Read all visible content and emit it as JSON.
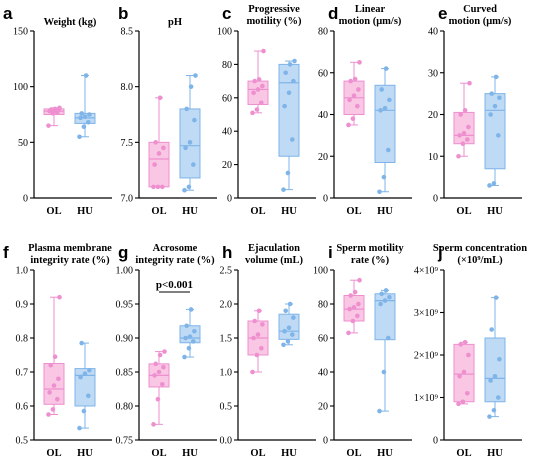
{
  "colors": {
    "OL_fill": "#f9c6e4",
    "OL_stroke": "#ee8fcf",
    "HU_fill": "#bfdaf4",
    "HU_stroke": "#7fb4e8"
  },
  "chart_data": [
    {
      "type": "box",
      "letter": "a",
      "title": [
        "Weight (kg)"
      ],
      "categories": [
        "OL",
        "HU"
      ],
      "ylim": [
        0,
        150
      ],
      "ticks": [
        0,
        50,
        100,
        150
      ],
      "tick_labels": [
        "0",
        "50",
        "100",
        "150"
      ],
      "series": [
        {
          "name": "OL",
          "box": [
            75,
            78,
            80
          ],
          "whisker": [
            65,
            81
          ],
          "points": [
            65,
            76,
            77,
            78,
            78,
            79,
            79,
            80,
            81
          ]
        },
        {
          "name": "HU",
          "box": [
            67,
            72,
            76
          ],
          "whisker": [
            55,
            110
          ],
          "points": [
            55,
            64,
            68,
            72,
            73,
            75,
            76,
            110
          ]
        }
      ]
    },
    {
      "type": "box",
      "letter": "b",
      "title": [
        "pH"
      ],
      "categories": [
        "OL",
        "HU"
      ],
      "ylim": [
        7.0,
        8.5
      ],
      "ticks": [
        7.0,
        7.5,
        8.0,
        8.5
      ],
      "tick_labels": [
        "7.0",
        "7.5",
        "8.0",
        "8.5"
      ],
      "series": [
        {
          "name": "OL",
          "box": [
            7.1,
            7.35,
            7.5
          ],
          "whisker": [
            7.1,
            7.9
          ],
          "points": [
            7.1,
            7.1,
            7.1,
            7.3,
            7.4,
            7.45,
            7.5,
            7.9
          ]
        },
        {
          "name": "HU",
          "box": [
            7.18,
            7.47,
            7.8
          ],
          "whisker": [
            7.07,
            8.1
          ],
          "points": [
            7.07,
            7.1,
            7.3,
            7.45,
            7.5,
            7.7,
            7.8,
            8.0,
            8.1
          ]
        }
      ]
    },
    {
      "type": "box",
      "letter": "c",
      "title": [
        "Progressive",
        "motility (%)"
      ],
      "categories": [
        "OL",
        "HU"
      ],
      "ylim": [
        0,
        100
      ],
      "ticks": [
        0,
        20,
        40,
        60,
        80,
        100
      ],
      "tick_labels": [
        "0",
        "20",
        "40",
        "60",
        "80",
        "100"
      ],
      "series": [
        {
          "name": "OL",
          "box": [
            56,
            65,
            70
          ],
          "whisker": [
            51,
            88
          ],
          "points": [
            51,
            53,
            57,
            63,
            65,
            67,
            70,
            71,
            88
          ]
        },
        {
          "name": "HU",
          "box": [
            25,
            69,
            80
          ],
          "whisker": [
            5,
            82
          ],
          "points": [
            5,
            15,
            35,
            55,
            63,
            70,
            75,
            80,
            82
          ]
        }
      ]
    },
    {
      "type": "box",
      "letter": "d",
      "title": [
        "Linear",
        "motion (μm/s)"
      ],
      "categories": [
        "OL",
        "HU"
      ],
      "ylim": [
        0,
        80
      ],
      "ticks": [
        0,
        20,
        40,
        60,
        80
      ],
      "tick_labels": [
        "0",
        "20",
        "40",
        "60",
        "80"
      ],
      "series": [
        {
          "name": "OL",
          "box": [
            40,
            48,
            56
          ],
          "whisker": [
            35,
            65
          ],
          "points": [
            35,
            38,
            44,
            47,
            49,
            52,
            56,
            57,
            65
          ]
        },
        {
          "name": "HU",
          "box": [
            17,
            42,
            54
          ],
          "whisker": [
            3,
            62
          ],
          "points": [
            3,
            10,
            23,
            42,
            43,
            47,
            52,
            62
          ]
        }
      ]
    },
    {
      "type": "box",
      "letter": "e",
      "title": [
        "Curved",
        "motion (μm/s)"
      ],
      "categories": [
        "OL",
        "HU"
      ],
      "ylim": [
        0,
        40
      ],
      "ticks": [
        0,
        10,
        20,
        30,
        40
      ],
      "tick_labels": [
        "0",
        "10",
        "20",
        "30",
        "40"
      ],
      "series": [
        {
          "name": "OL",
          "box": [
            13,
            15,
            20.5
          ],
          "whisker": [
            10,
            27.5
          ],
          "points": [
            10,
            13,
            14,
            15,
            15.5,
            17,
            20,
            21,
            27.5
          ]
        },
        {
          "name": "HU",
          "box": [
            7,
            21,
            25
          ],
          "whisker": [
            3,
            29
          ],
          "points": [
            3,
            3.5,
            15,
            20,
            22,
            24,
            25,
            29
          ]
        }
      ]
    },
    {
      "type": "box",
      "letter": "f",
      "title": [
        "Plasma membrane",
        "integrity rate (%)"
      ],
      "categories": [
        "OL",
        "HU"
      ],
      "ylim": [
        0.5,
        1.0
      ],
      "ticks": [
        0.5,
        0.6,
        0.7,
        0.8,
        0.9,
        1.0
      ],
      "tick_labels": [
        "0.5",
        "0.6",
        "0.7",
        "0.8",
        "0.9",
        "1.0"
      ],
      "series": [
        {
          "name": "OL",
          "box": [
            0.605,
            0.65,
            0.725
          ],
          "whisker": [
            0.575,
            0.92
          ],
          "points": [
            0.575,
            0.59,
            0.62,
            0.64,
            0.66,
            0.68,
            0.72,
            0.745,
            0.92
          ]
        },
        {
          "name": "HU",
          "box": [
            0.6,
            0.69,
            0.71
          ],
          "whisker": [
            0.535,
            0.785
          ],
          "points": [
            0.535,
            0.585,
            0.63,
            0.685,
            0.695,
            0.705,
            0.785
          ]
        }
      ]
    },
    {
      "type": "box",
      "letter": "g",
      "title": [
        "Acrosome",
        "integrity rate (%)"
      ],
      "categories": [
        "OL",
        "HU"
      ],
      "ylim": [
        0.75,
        1.0
      ],
      "ticks": [
        0.75,
        0.8,
        0.85,
        0.9,
        0.95,
        1.0
      ],
      "tick_labels": [
        "0.75",
        "0.80",
        "0.85",
        "0.90",
        "0.95",
        "1.00"
      ],
      "annotation": "p<0.001",
      "series": [
        {
          "name": "OL",
          "box": [
            0.828,
            0.845,
            0.862
          ],
          "whisker": [
            0.773,
            0.88
          ],
          "points": [
            0.773,
            0.81,
            0.832,
            0.845,
            0.85,
            0.857,
            0.862,
            0.875,
            0.88
          ]
        },
        {
          "name": "HU",
          "box": [
            0.893,
            0.9,
            0.918
          ],
          "whisker": [
            0.872,
            0.942
          ],
          "points": [
            0.872,
            0.885,
            0.895,
            0.9,
            0.902,
            0.91,
            0.918,
            0.942
          ]
        }
      ]
    },
    {
      "type": "box",
      "letter": "h",
      "title": [
        "Ejaculation",
        "volume (mL)"
      ],
      "categories": [
        "OL",
        "HU"
      ],
      "ylim": [
        0.0,
        2.5
      ],
      "ticks": [
        0.0,
        0.5,
        1.0,
        1.5,
        2.0,
        2.5
      ],
      "tick_labels": [
        "0.0",
        "0.5",
        "1.0",
        "1.5",
        "2.0",
        "2.5"
      ],
      "series": [
        {
          "name": "OL",
          "box": [
            1.25,
            1.5,
            1.75
          ],
          "whisker": [
            1.0,
            1.9
          ],
          "points": [
            1.0,
            1.25,
            1.35,
            1.5,
            1.55,
            1.7,
            1.75,
            1.9
          ]
        },
        {
          "name": "HU",
          "box": [
            1.48,
            1.6,
            1.85
          ],
          "whisker": [
            1.4,
            2.0
          ],
          "points": [
            1.4,
            1.45,
            1.55,
            1.6,
            1.65,
            1.8,
            1.9,
            2.0
          ]
        }
      ]
    },
    {
      "type": "box",
      "letter": "i",
      "title": [
        "Sperm motility",
        "rate (%)"
      ],
      "categories": [
        "OL",
        "HU"
      ],
      "ylim": [
        0,
        100
      ],
      "ticks": [
        0,
        20,
        40,
        60,
        80,
        100
      ],
      "tick_labels": [
        "0",
        "20",
        "40",
        "60",
        "80",
        "100"
      ],
      "series": [
        {
          "name": "OL",
          "box": [
            70,
            77,
            85
          ],
          "whisker": [
            63,
            94
          ],
          "points": [
            63,
            70,
            73,
            77,
            78,
            80,
            85,
            87,
            94
          ]
        },
        {
          "name": "HU",
          "box": [
            59,
            82,
            86
          ],
          "whisker": [
            17,
            88
          ],
          "points": [
            17,
            40,
            60,
            80,
            82,
            84,
            86,
            88
          ]
        }
      ]
    },
    {
      "type": "box",
      "letter": "j",
      "title": [
        "Sperm concentration",
        "(×10⁹/mL)"
      ],
      "categories": [
        "OL",
        "HU"
      ],
      "ylim": [
        0,
        4000000000
      ],
      "ticks": [
        0,
        1000000000,
        2000000000,
        3000000000,
        4000000000
      ],
      "tick_labels": [
        "0",
        "1×10⁹",
        "2×10⁹",
        "3×10⁹",
        "4×10⁹"
      ],
      "series": [
        {
          "name": "OL",
          "box": [
            900000000,
            1550000000,
            2250000000
          ],
          "whisker": [
            850000000,
            2300000000
          ],
          "points": [
            850000000,
            900000000,
            1100000000,
            1500000000,
            1600000000,
            2000000000,
            2250000000,
            2300000000
          ]
        },
        {
          "name": "HU",
          "box": [
            900000000,
            1450000000,
            2400000000
          ],
          "whisker": [
            550000000,
            3350000000
          ],
          "points": [
            550000000,
            700000000,
            1000000000,
            1400000000,
            1500000000,
            1900000000,
            2600000000,
            3350000000
          ]
        }
      ]
    }
  ]
}
